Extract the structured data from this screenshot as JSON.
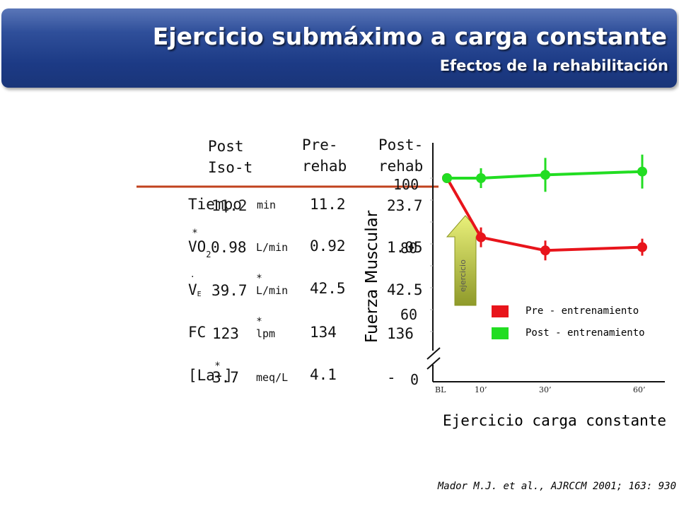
{
  "header": {
    "title": "Ejercicio submáximo a carga constante",
    "subtitle": "Efectos de la rehabilitación"
  },
  "table": {
    "columns": [
      {
        "line1": "Post",
        "line2": "Iso-t"
      },
      {
        "line1": "Pre-",
        "line2": "rehab"
      },
      {
        "line1": "Post-",
        "line2": "rehab"
      }
    ],
    "rows": [
      {
        "label": "Tiempo",
        "unit": "min",
        "post_iso": "11.2",
        "pre": "11.2",
        "post": "23.7",
        "asterisk": "*"
      },
      {
        "label": "VO",
        "label_sub": "2",
        "unit": "L/min",
        "post_iso": "0.98",
        "pre": "0.92",
        "post": "1.05",
        "asterisk": "*"
      },
      {
        "label": "V",
        "label_sub": "E",
        "unit": "L/min",
        "post_iso": "39.7",
        "pre": "42.5",
        "post": "42.5",
        "asterisk": "*"
      },
      {
        "label": "FC",
        "unit": "lpm",
        "post_iso": "123",
        "pre": "134",
        "post": "136",
        "asterisk": "*"
      },
      {
        "label": "[La-]",
        "unit": "meq/L",
        "post_iso": "3.7",
        "pre": "4.1",
        "post": "-",
        "asterisk": "*"
      }
    ]
  },
  "chart_data": {
    "type": "line",
    "ylabel": "Fuerza Muscular",
    "xlabel": "Ejercicio carga constante",
    "y_ticks": [
      "100",
      "80",
      "60",
      "0"
    ],
    "ylim": [
      0,
      100
    ],
    "categories": [
      "BL",
      "10’",
      "30’",
      "60’"
    ],
    "series": [
      {
        "name": "Pre - entrenamiento",
        "color": "#e8141b",
        "values": [
          100,
          82,
          78,
          79
        ]
      },
      {
        "name": "Post - entrenamiento",
        "color": "#22dd22",
        "values": [
          100,
          100,
          101,
          102
        ]
      }
    ],
    "annotation": "ejercicio",
    "legend_position": "right"
  },
  "citation": "Mador M.J. et al., AJRCCM 2001; 163: 930"
}
